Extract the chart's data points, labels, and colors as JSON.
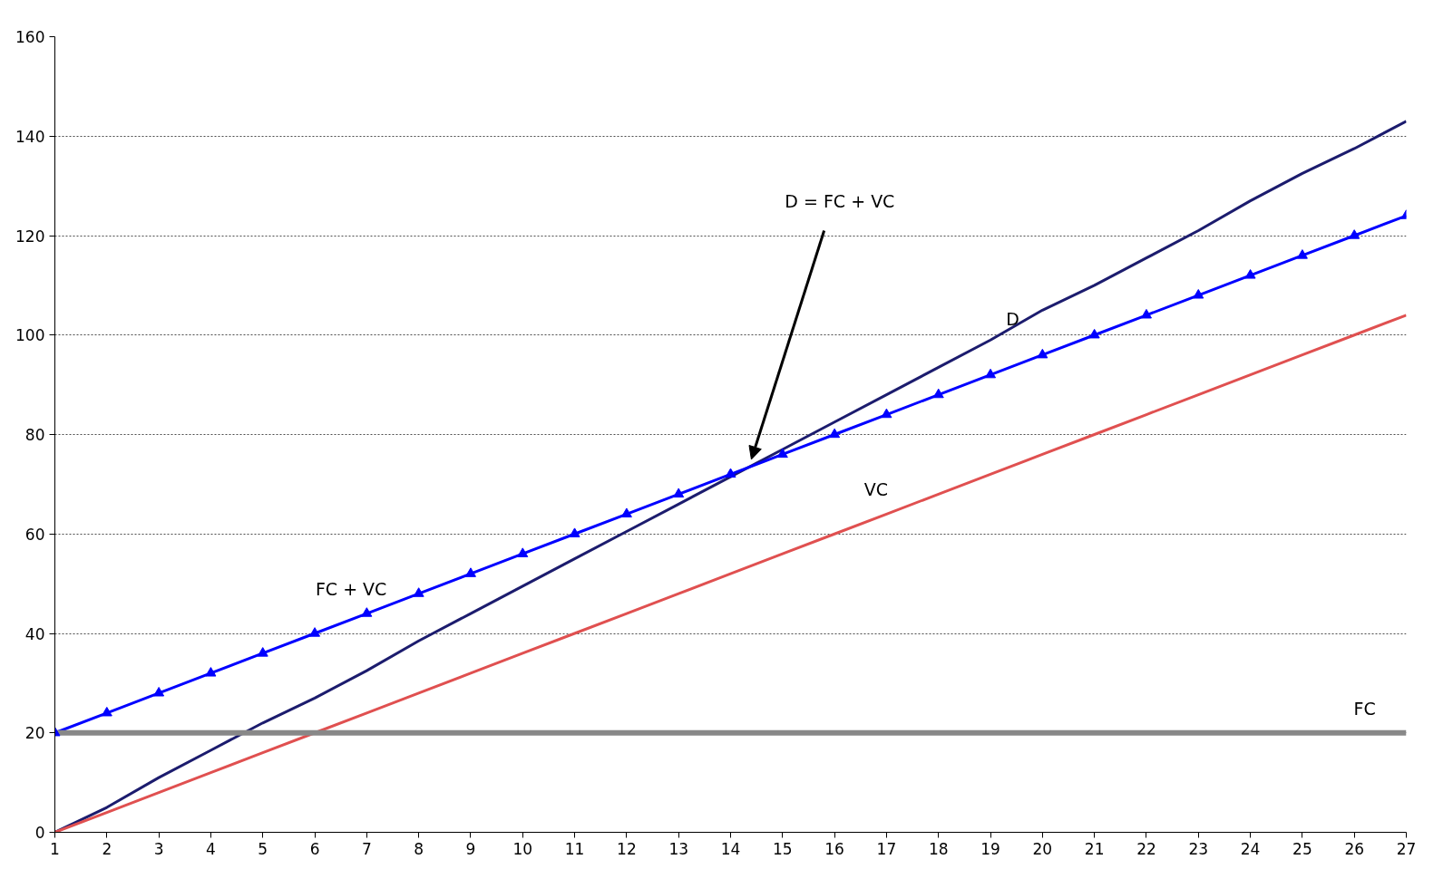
{
  "chart_data": {
    "type": "line",
    "x": [
      1,
      2,
      3,
      4,
      5,
      6,
      7,
      8,
      9,
      10,
      11,
      12,
      13,
      14,
      15,
      16,
      17,
      18,
      19,
      20,
      21,
      22,
      23,
      24,
      25,
      26,
      27
    ],
    "xlim": [
      1,
      27
    ],
    "xticks": [
      1,
      2,
      3,
      4,
      5,
      6,
      7,
      8,
      9,
      10,
      11,
      12,
      13,
      14,
      15,
      16,
      17,
      18,
      19,
      20,
      21,
      22,
      23,
      24,
      25,
      26,
      27
    ],
    "ylim": [
      0,
      160
    ],
    "yticks": [
      0,
      20,
      40,
      60,
      80,
      100,
      120,
      140,
      160
    ],
    "grid": "y",
    "line_style": "solid",
    "series": [
      {
        "name": "D",
        "color": "#1c1c6e",
        "marker": "none",
        "values": [
          0,
          5,
          11,
          16.5,
          22,
          27,
          32.5,
          38.5,
          44,
          49.5,
          55,
          60.5,
          66,
          71.5,
          77,
          82.5,
          88,
          93.5,
          99,
          105,
          110,
          115.5,
          121,
          127,
          132.5,
          137.5,
          143
        ]
      },
      {
        "name": "FC + VC",
        "color": "#0000ff",
        "marker": "triangle",
        "values": [
          20,
          24,
          28,
          32,
          36,
          40,
          44,
          48,
          52,
          56,
          60,
          64,
          68,
          72,
          76,
          80,
          84,
          88,
          92,
          96,
          100,
          104,
          108,
          112,
          116,
          120,
          124
        ]
      },
      {
        "name": "VC",
        "color": "#e05050",
        "marker": "none",
        "values": [
          0,
          4,
          8,
          12,
          16,
          20,
          24,
          28,
          32,
          36,
          40,
          44,
          48,
          52,
          56,
          60,
          64,
          68,
          72,
          76,
          80,
          84,
          88,
          92,
          96,
          100,
          104
        ]
      },
      {
        "name": "FC",
        "color": "#888888",
        "marker": "none",
        "values": [
          20,
          20,
          20,
          20,
          20,
          20,
          20,
          20,
          20,
          20,
          20,
          20,
          20,
          20,
          20,
          20,
          20,
          20,
          20,
          20,
          20,
          20,
          20,
          20,
          20,
          20,
          20
        ]
      }
    ],
    "annotations": [
      {
        "text": "D = FC + VC",
        "x": 14.4,
        "y": 75
      }
    ]
  }
}
